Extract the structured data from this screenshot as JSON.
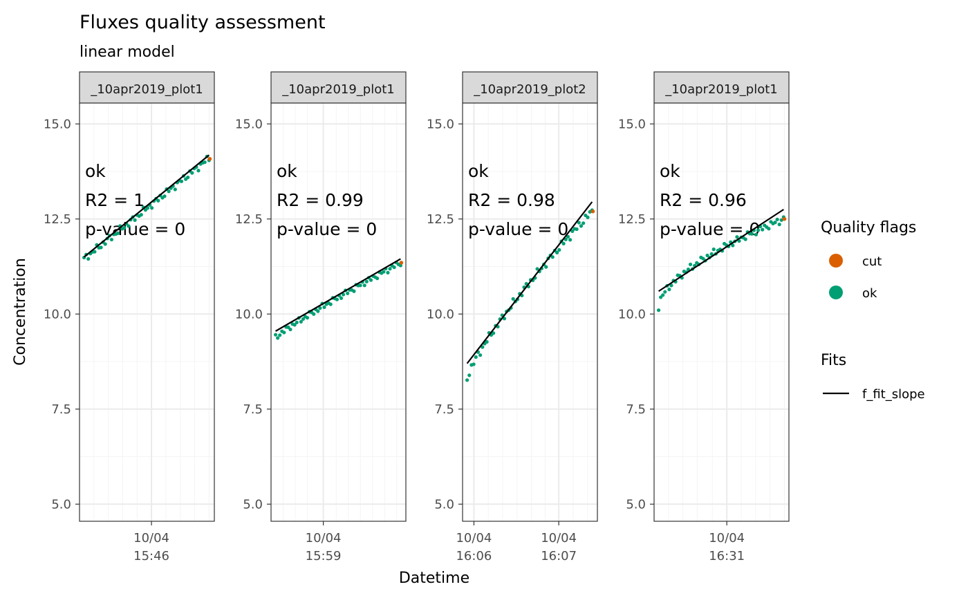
{
  "chart_data": {
    "type": "scatter",
    "title": "Fluxes quality assessment",
    "subtitle": "linear model",
    "xlabel": "Datetime",
    "ylabel": "Concentration",
    "ylim": [
      4.55,
      15.55
    ],
    "y_ticks": [
      5.0,
      7.5,
      10.0,
      12.5,
      15.0
    ],
    "y_tick_labels": [
      "5.0",
      "7.5",
      "10.0",
      "12.5",
      "15.0"
    ],
    "grid": true,
    "colors": {
      "cut": "#D95F02",
      "ok": "#009E73",
      "fit": "#000000",
      "strip": "#D9D9D9",
      "grid": "#EBEBEB"
    },
    "legend_placement": "right",
    "legends": [
      {
        "title": "Quality flags",
        "entries": [
          {
            "label": "cut",
            "color": "#D95F02",
            "kind": "point"
          },
          {
            "label": "ok",
            "color": "#009E73",
            "kind": "point"
          }
        ]
      },
      {
        "title": "Fits",
        "entries": [
          {
            "label": "f_fit_slope",
            "color": "#000000",
            "kind": "line"
          }
        ]
      }
    ],
    "panels": [
      {
        "strip": "_10apr2019_plot1",
        "xlim_min": [
          0,
          8.9
        ],
        "x_major_ticks": [
          {
            "pos": 4.75,
            "label": [
              "10/04",
              "15:46"
            ]
          }
        ],
        "x_minor_ticks": [
          0.95,
          1.9,
          2.85,
          3.8,
          5.7,
          6.65,
          7.6,
          8.55
        ],
        "annotation": [
          "ok",
          "R2 = 1",
          "p-value = 0"
        ],
        "fit": {
          "x": [
            0.3,
            8.55
          ],
          "y": [
            11.5,
            14.18
          ]
        },
        "start": {
          "x": 0.3,
          "y": 11.45
        },
        "end": {
          "x": 8.55,
          "y": 14.1
        },
        "n_points": 60,
        "pattern": {
          "pow": 1.0,
          "dy": 0,
          "noise": 0.07,
          "startOff": 0
        },
        "cut": [
          {
            "x": 8.6,
            "y": 14.08
          }
        ]
      },
      {
        "strip": "_10apr2019_plot1",
        "xlim_min": [
          0,
          8.9
        ],
        "x_major_ticks": [
          {
            "pos": 3.45,
            "label": [
              "10/04",
              "15:59"
            ]
          }
        ],
        "x_minor_ticks": [
          0.8,
          1.6,
          2.4,
          4.3,
          5.1,
          5.9,
          6.7,
          7.5,
          8.3
        ],
        "annotation": [
          "ok",
          "R2 = 0.99",
          "p-value = 0"
        ],
        "fit": {
          "x": [
            0.3,
            8.55
          ],
          "y": [
            9.55,
            11.45
          ]
        },
        "start": {
          "x": 0.3,
          "y": 9.38
        },
        "end": {
          "x": 8.55,
          "y": 11.35
        },
        "n_points": 60,
        "pattern": {
          "pow": 0.9,
          "dy": 0,
          "noise": 0.06,
          "startOff": 0
        },
        "cut": [
          {
            "x": 8.6,
            "y": 11.35
          }
        ]
      },
      {
        "strip": "_10apr2019_plot2",
        "xlim_min": [
          0,
          8.9
        ],
        "x_major_ticks": [
          {
            "pos": 0.75,
            "label": [
              "10/04",
              "16:06"
            ]
          },
          {
            "pos": 6.35,
            "label": [
              "10/04",
              "16:07"
            ]
          }
        ],
        "x_minor_ticks": [
          1.7,
          2.65,
          3.6,
          4.55,
          5.45,
          7.3,
          8.25
        ],
        "annotation": [
          "ok",
          "R2 = 0.98",
          "p-value = 0"
        ],
        "fit": {
          "x": [
            0.3,
            8.55
          ],
          "y": [
            8.7,
            12.95
          ]
        },
        "start": {
          "x": 0.3,
          "y": 8.3
        },
        "end": {
          "x": 8.55,
          "y": 12.7
        },
        "n_points": 58,
        "pattern": {
          "pow": 0.8,
          "dy": 0,
          "noise": 0.08,
          "startOff": 0
        },
        "cut": [
          {
            "x": 8.6,
            "y": 12.7
          }
        ]
      },
      {
        "strip": "_10apr2019_plot1",
        "xlim_min": [
          0,
          8.9
        ],
        "x_major_ticks": [
          {
            "pos": 4.8,
            "label": [
              "10/04",
              "16:31"
            ]
          }
        ],
        "x_minor_ticks": [
          0.95,
          1.9,
          2.85,
          3.85,
          5.75,
          6.7,
          7.65,
          8.6
        ],
        "annotation": [
          "ok",
          "R2 = 0.96",
          "p-value = 0"
        ],
        "fit": {
          "x": [
            0.3,
            8.55
          ],
          "y": [
            10.6,
            12.75
          ]
        },
        "start": {
          "x": 0.3,
          "y": 10.2
        },
        "end": {
          "x": 8.55,
          "y": 12.5
        },
        "n_points": 60,
        "pattern": {
          "pow": 0.6,
          "dy": 0,
          "noise": 0.07,
          "startOff": 0
        },
        "cut": [
          {
            "x": 8.6,
            "y": 12.5
          }
        ]
      }
    ]
  }
}
